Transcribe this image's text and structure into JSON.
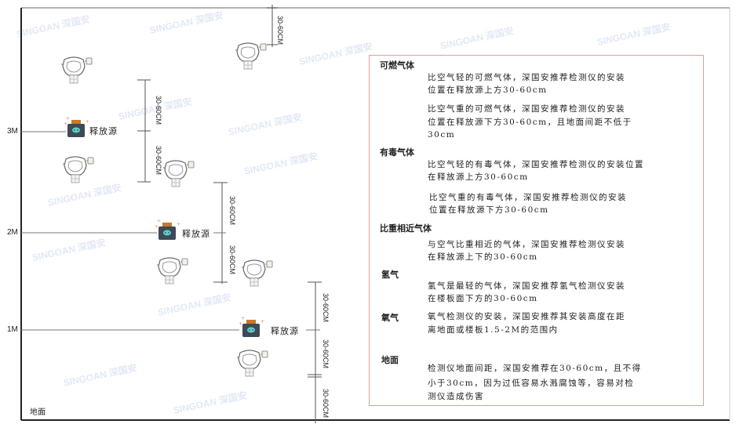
{
  "levels": {
    "l3": "3M",
    "l2": "2M",
    "l1": "1M"
  },
  "source_label": "释放源",
  "dim_label": "30-60CM",
  "floor_label": "地面",
  "watermark": "SINGOAN 深国安",
  "panel": {
    "combustible": {
      "title": "可燃气体",
      "lighter": [
        "比空气轻的可燃气体，深国安推荐检测仪的安装",
        "位置在释放源上方30-60cm"
      ],
      "heavier": [
        "比空气重的可燃气体，深国安推荐检测仪的安装",
        "位置在释放源下方30-60cm，且地面间距不低于",
        "30cm"
      ]
    },
    "toxic": {
      "title": "有毒气体",
      "lighter": [
        "比空气轻的有毒气体，深国安推荐检测仪的安装位置",
        "在释放源上方30-60cm"
      ],
      "heavier": [
        "比空气重的有毒气体，深国安推荐检测仪的安装",
        "位置在释放源下方30-60cm"
      ]
    },
    "similar": {
      "title": "比重相近气体",
      "text": [
        "与空气比重相近的气体，深国安推荐检测仪安装",
        "在释放源上下的30-60cm"
      ]
    },
    "hydrogen": {
      "title": "氢气",
      "text": [
        "氢气是最轻的气体，深国安推荐氢气检测仪安装",
        "在楼板面下方的30-60cm"
      ]
    },
    "oxygen": {
      "title": "氧气",
      "text": [
        "氧气检测仪的安装，深国安推荐其安装高度在距",
        "离地面或楼板1.5-2M的范围内"
      ]
    },
    "ground": {
      "title": "地面",
      "text": [
        "检测仪地面间距，深国安推荐在30-60cm，且不得",
        "小于30cm，因为过低容易水溅腐蚀等，容易对检",
        "测仪造成伤害"
      ]
    }
  },
  "colors": {
    "panel_border": "#e8999b",
    "source_body": "#3d4a57",
    "source_cap": "#c9782a",
    "source_face": "#5fd0c8"
  }
}
